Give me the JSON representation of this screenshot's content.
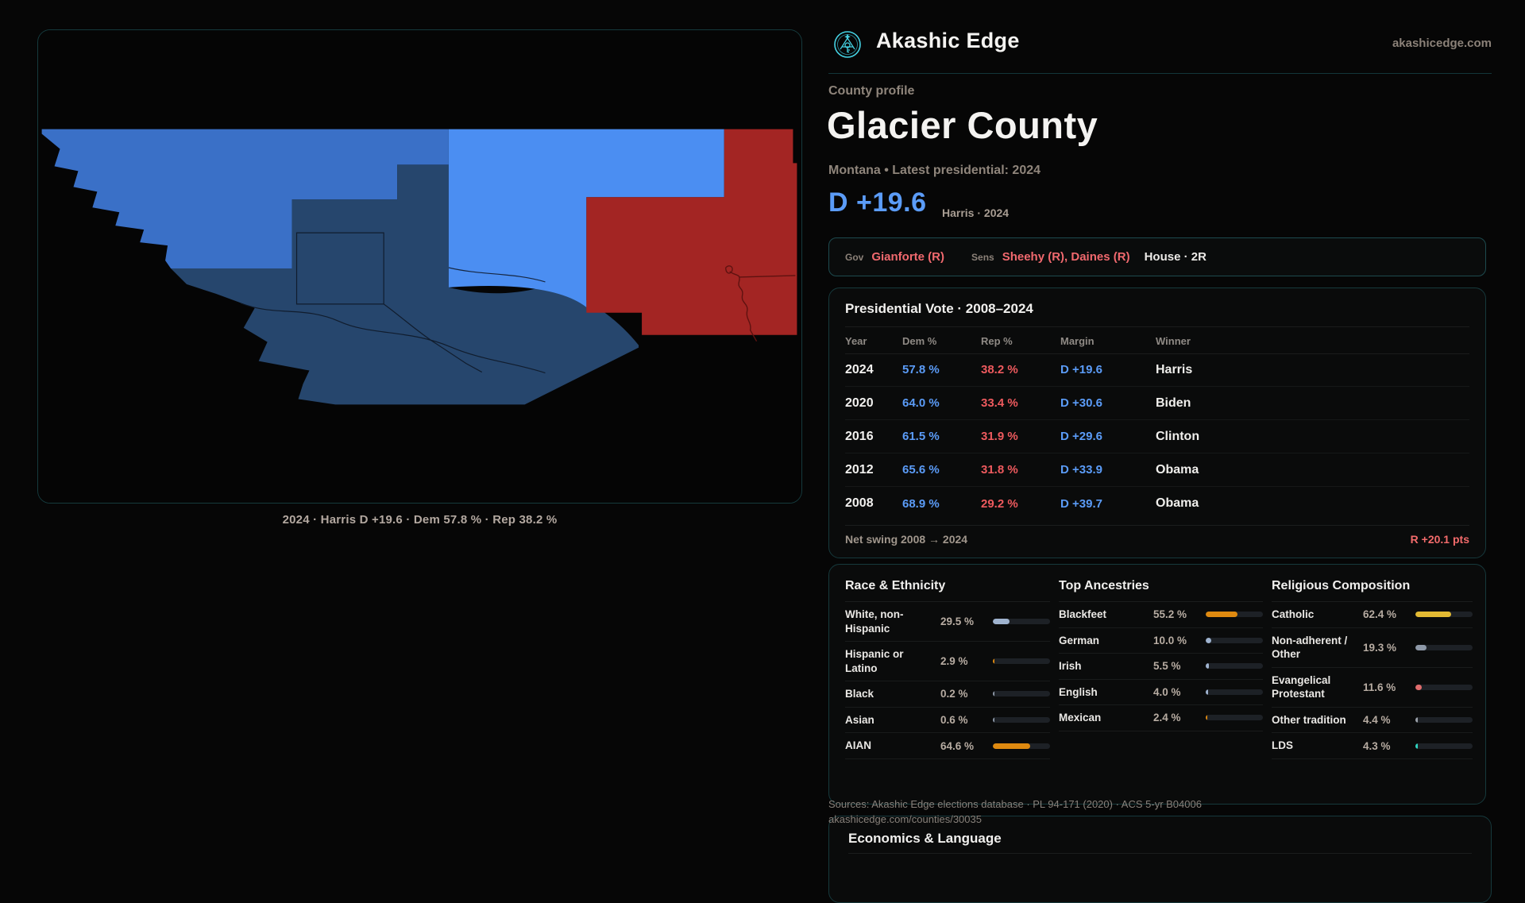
{
  "brand": {
    "name": "Akashic Edge",
    "domain": "akashicedge.com"
  },
  "page": {
    "kicker": "County profile",
    "title": "Glacier County",
    "subtitle": "Montana • Latest presidential: 2024",
    "headline_margin": "D +19.6",
    "headline_context": "Harris · 2024"
  },
  "officials": {
    "gov_label": "Gov",
    "gov_value": "Gianforte (R)",
    "sens_label": "Sens",
    "sens_value": "Sheehy (R), Daines (R)",
    "house_value": "House · 2R"
  },
  "presidential": {
    "title": "Presidential Vote · 2008–2024",
    "columns": [
      "Year",
      "Dem %",
      "Rep %",
      "Margin",
      "Winner"
    ],
    "rows": [
      {
        "year": "2024",
        "dem": "57.8 %",
        "rep": "38.2 %",
        "margin": "D +19.6",
        "winner": "Harris"
      },
      {
        "year": "2020",
        "dem": "64.0 %",
        "rep": "33.4 %",
        "margin": "D +30.6",
        "winner": "Biden"
      },
      {
        "year": "2016",
        "dem": "61.5 %",
        "rep": "31.9 %",
        "margin": "D +29.6",
        "winner": "Clinton"
      },
      {
        "year": "2012",
        "dem": "65.6 %",
        "rep": "31.8 %",
        "margin": "D +33.9",
        "winner": "Obama"
      },
      {
        "year": "2008",
        "dem": "68.9 %",
        "rep": "29.2 %",
        "margin": "D +39.7",
        "winner": "Obama"
      }
    ],
    "net_swing_label": "Net swing 2008 → 2024",
    "net_swing_value": "R +20.1 pts"
  },
  "demographics": {
    "sections": [
      {
        "title": "Race & Ethnicity",
        "rows": [
          {
            "label": "White, non-Hispanic",
            "value": "29.5 %",
            "pct": 29.5,
            "color": "#9fb3cf"
          },
          {
            "label": "Hispanic or Latino",
            "value": "2.9 %",
            "pct": 2.9,
            "color": "#df8a10"
          },
          {
            "label": "Black",
            "value": "0.2 %",
            "pct": 0.2,
            "color": "#8e99a8"
          },
          {
            "label": "Asian",
            "value": "0.6 %",
            "pct": 0.6,
            "color": "#8e99a8"
          },
          {
            "label": "AIAN",
            "value": "64.6 %",
            "pct": 64.6,
            "color": "#df8a10"
          }
        ]
      },
      {
        "title": "Top Ancestries",
        "rows": [
          {
            "label": "Blackfeet",
            "value": "55.2 %",
            "pct": 55.2,
            "color": "#df8a10"
          },
          {
            "label": "German",
            "value": "10.0 %",
            "pct": 10.0,
            "color": "#9fb3cf"
          },
          {
            "label": "Irish",
            "value": "5.5 %",
            "pct": 5.5,
            "color": "#9fb3cf"
          },
          {
            "label": "English",
            "value": "4.0 %",
            "pct": 4.0,
            "color": "#9fb3cf"
          },
          {
            "label": "Mexican",
            "value": "2.4 %",
            "pct": 2.4,
            "color": "#df8a10"
          }
        ]
      },
      {
        "title": "Religious Composition",
        "rows": [
          {
            "label": "Catholic",
            "value": "62.4 %",
            "pct": 62.4,
            "color": "#e3ba33"
          },
          {
            "label": "Non-adherent / Other",
            "value": "19.3 %",
            "pct": 19.3,
            "color": "#8e99a8"
          },
          {
            "label": "Evangelical Protestant",
            "value": "11.6 %",
            "pct": 11.6,
            "color": "#e06c6c"
          },
          {
            "label": "Other tradition",
            "value": "4.4 %",
            "pct": 4.4,
            "color": "#9aa0a8"
          },
          {
            "label": "LDS",
            "value": "4.3 %",
            "pct": 4.3,
            "color": "#2fd4c0"
          }
        ]
      }
    ]
  },
  "map": {
    "caption": "2024 · Harris D +19.6 · Dem 57.8 % · Rep 38.2 %",
    "region_colors": {
      "west": "#3a70c7",
      "center": "#26466d",
      "band": "#4b8ef2",
      "east": "#a32523"
    }
  },
  "footer": {
    "sources": "Sources: Akashic Edge elections database · PL 94-171 (2020) · ACS 5-yr B04006",
    "permalink": "akashicedge.com/counties/30035"
  },
  "economics": {
    "title": "Economics & Language"
  },
  "colors": {
    "accent_teal": "#43cfe0",
    "dem_blue": "#5b9cf8",
    "rep_red": "#ef5f63",
    "swing_red": "#f26b6b",
    "muted_text": "#8f857b",
    "card_border": "#16393c"
  }
}
